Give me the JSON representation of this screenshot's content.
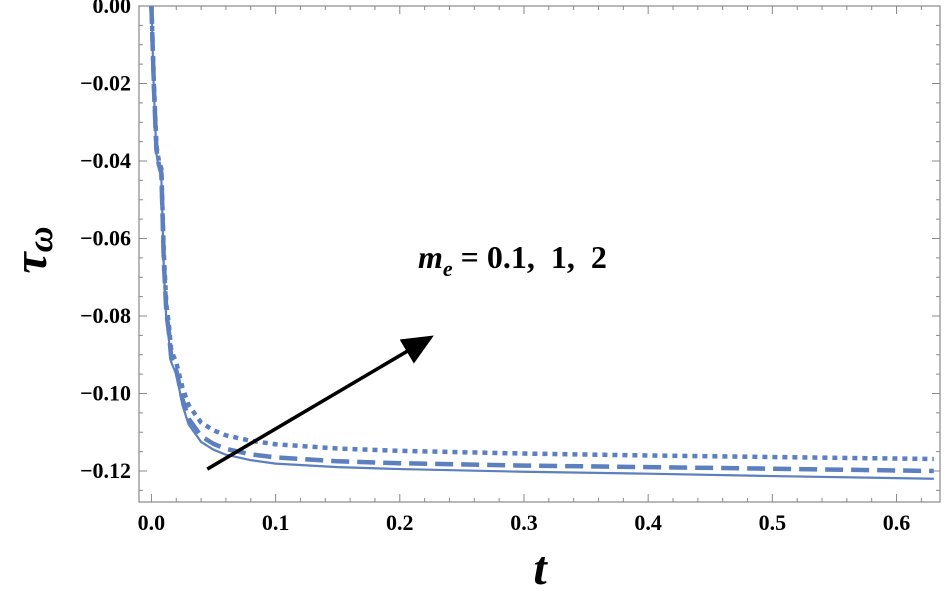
{
  "chart_data": {
    "type": "line",
    "title": "",
    "xlabel": "t",
    "ylabel": "τ",
    "ylabel_subscript": "ω",
    "xlim": [
      -0.01,
      0.635
    ],
    "ylim": [
      -0.128,
      0.0
    ],
    "x_ticks": [
      "0.0",
      "0.1",
      "0.2",
      "0.3",
      "0.4",
      "0.5",
      "0.6"
    ],
    "x_tick_values": [
      0.0,
      0.1,
      0.2,
      0.3,
      0.4,
      0.5,
      0.6
    ],
    "y_ticks": [
      "0.00",
      "−0.02",
      "−0.04",
      "−0.06",
      "−0.08",
      "−0.10",
      "−0.12"
    ],
    "y_tick_values": [
      0.0,
      -0.02,
      -0.04,
      -0.06,
      -0.08,
      -0.1,
      -0.12
    ],
    "grid": false,
    "annotation": {
      "text_main": "m",
      "text_sub": "e",
      "text_rest": " = 0.1,  1,  2",
      "arrow_from": [
        0.045,
        -0.1195
      ],
      "arrow_to": [
        0.225,
        -0.0855
      ]
    },
    "series": [
      {
        "style": "solid",
        "color": "#5b7fbf",
        "x": [
          0.0,
          0.002,
          0.004,
          0.006,
          0.008,
          0.01,
          0.012,
          0.014,
          0.016,
          0.02,
          0.025,
          0.03,
          0.04,
          0.05,
          0.06,
          0.08,
          0.1,
          0.15,
          0.2,
          0.3,
          0.4,
          0.5,
          0.63
        ],
        "y": [
          0.0,
          -0.022,
          -0.038,
          -0.042,
          -0.044,
          -0.068,
          -0.081,
          -0.086,
          -0.092,
          -0.095,
          -0.103,
          -0.108,
          -0.1125,
          -0.1145,
          -0.1158,
          -0.1172,
          -0.1181,
          -0.119,
          -0.1195,
          -0.1202,
          -0.1207,
          -0.1213,
          -0.122
        ]
      },
      {
        "style": "dashed",
        "color": "#5b7fbf",
        "x": [
          0.0,
          0.002,
          0.004,
          0.006,
          0.008,
          0.01,
          0.012,
          0.014,
          0.016,
          0.02,
          0.025,
          0.03,
          0.04,
          0.05,
          0.06,
          0.08,
          0.1,
          0.15,
          0.2,
          0.3,
          0.4,
          0.5,
          0.63
        ],
        "y": [
          0.0,
          -0.021,
          -0.037,
          -0.041,
          -0.043,
          -0.066,
          -0.079,
          -0.084,
          -0.091,
          -0.094,
          -0.1015,
          -0.1065,
          -0.111,
          -0.113,
          -0.1143,
          -0.1157,
          -0.1165,
          -0.1175,
          -0.118,
          -0.1186,
          -0.119,
          -0.1194,
          -0.12
        ]
      },
      {
        "style": "dotted",
        "color": "#5b7fbf",
        "x": [
          0.0,
          0.002,
          0.004,
          0.006,
          0.008,
          0.01,
          0.012,
          0.014,
          0.016,
          0.02,
          0.025,
          0.03,
          0.04,
          0.05,
          0.06,
          0.08,
          0.1,
          0.15,
          0.2,
          0.3,
          0.4,
          0.5,
          0.63
        ],
        "y": [
          0.0,
          -0.02,
          -0.036,
          -0.04,
          -0.042,
          -0.064,
          -0.077,
          -0.082,
          -0.089,
          -0.092,
          -0.0985,
          -0.103,
          -0.1075,
          -0.1095,
          -0.1108,
          -0.1122,
          -0.1131,
          -0.1142,
          -0.1148,
          -0.1155,
          -0.116,
          -0.1164,
          -0.1169
        ]
      }
    ]
  }
}
